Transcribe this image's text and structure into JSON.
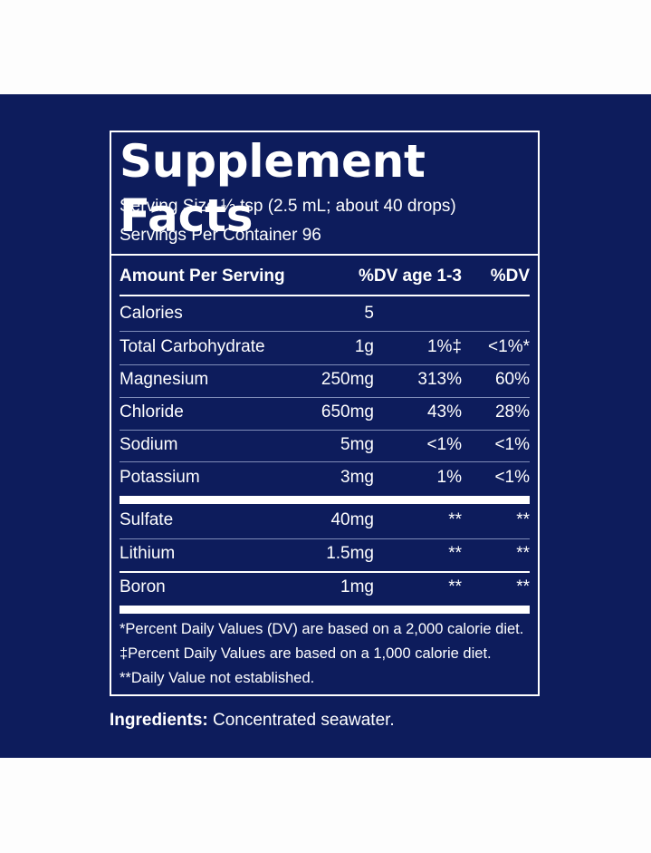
{
  "label": {
    "title": "Supplement Facts",
    "serving_size": "Serving Size ½ tsp (2.5 mL; about 40 drops)",
    "servings_per_container": "Servings Per Container 96",
    "header": {
      "amount": "Amount Per Serving",
      "dv_child": "%DV age 1-3",
      "dv": "%DV"
    },
    "rows": [
      {
        "name": "Calories",
        "amount": "5",
        "dv_child": "",
        "dv": ""
      },
      {
        "name": "Total Carbohydrate",
        "amount": "1g",
        "dv_child": "1%‡",
        "dv": "<1%*"
      },
      {
        "name": "Magnesium",
        "amount": "250mg",
        "dv_child": "313%",
        "dv": "60%"
      },
      {
        "name": "Chloride",
        "amount": "650mg",
        "dv_child": "43%",
        "dv": "28%"
      },
      {
        "name": "Sodium",
        "amount": "5mg",
        "dv_child": "<1%",
        "dv": "<1%"
      },
      {
        "name": "Potassium",
        "amount": "3mg",
        "dv_child": "1%",
        "dv": "<1%"
      }
    ],
    "rows2": [
      {
        "name": "Sulfate",
        "amount": "40mg",
        "dv_child": "**",
        "dv": "**"
      },
      {
        "name": "Lithium",
        "amount": "1.5mg",
        "dv_child": "**",
        "dv": "**"
      },
      {
        "name": "Boron",
        "amount": "1mg",
        "dv_child": "**",
        "dv": "**"
      }
    ],
    "footnotes": [
      "*Percent Daily Values (DV) are based on a 2,000 calorie diet.",
      "‡Percent Daily Values are based on a 1,000 calorie diet.",
      "**Daily Value not established."
    ]
  },
  "ingredients": {
    "label": "Ingredients:",
    "text": " Concentrated seawater."
  },
  "colors": {
    "background": "#0d1c5c",
    "text": "#ffffff"
  }
}
